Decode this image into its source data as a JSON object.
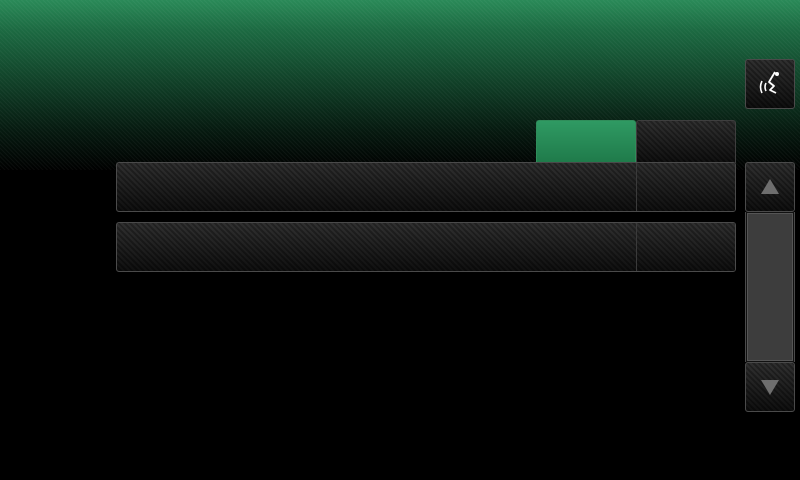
{
  "tabs": [
    {
      "label": "",
      "active": true
    },
    {
      "label": "",
      "active": false
    }
  ],
  "rows": [
    {
      "label": "",
      "value": ""
    },
    {
      "label": "",
      "value": ""
    }
  ],
  "voice_button": {
    "icon": "voice-recognition-icon"
  },
  "scrollbar": {
    "up_icon": "arrow-up-icon",
    "down_icon": "arrow-down-icon",
    "position": 0.0
  },
  "colors": {
    "accent": "#2a8a58",
    "background": "#000000",
    "arrow": "#6e6e6e"
  }
}
